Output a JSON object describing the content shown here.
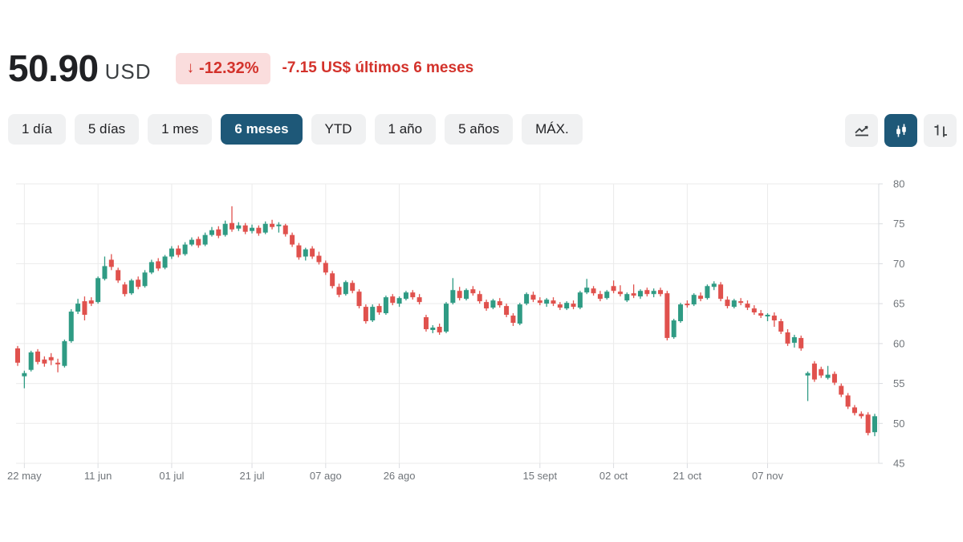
{
  "header": {
    "price": "50.90",
    "currency": "USD",
    "change_arrow": "↓",
    "change_percent": "-12.32%",
    "change_detail": "-7.15 US$ últimos 6 meses"
  },
  "range_tabs": [
    {
      "label": "1 día",
      "selected": false
    },
    {
      "label": "5 días",
      "selected": false
    },
    {
      "label": "1 mes",
      "selected": false
    },
    {
      "label": "6 meses",
      "selected": true
    },
    {
      "label": "YTD",
      "selected": false
    },
    {
      "label": "1 año",
      "selected": false
    },
    {
      "label": "5 años",
      "selected": false
    },
    {
      "label": "MÁX.",
      "selected": false
    }
  ],
  "chart_type_buttons": [
    {
      "icon": "line-chart-icon",
      "selected": false
    },
    {
      "icon": "candlestick-chart-icon",
      "selected": true
    },
    {
      "icon": "ohlc-chart-icon",
      "selected": false
    }
  ],
  "colors": {
    "accent": "#1e5878",
    "up": "#2f9b84",
    "down": "#e0514d",
    "badge_bg": "#fadddd",
    "negative_text": "#d3322b",
    "tab_bg": "#f0f1f2",
    "text_primary": "#202124",
    "axis_label": "#70757a",
    "gridline": "#ebebeb",
    "axis_line": "#dadce0"
  },
  "chart_data": {
    "type": "candlestick",
    "currency": "USD",
    "y_range": [
      45,
      80
    ],
    "y_ticks": [
      45,
      50,
      55,
      60,
      65,
      70,
      75,
      80
    ],
    "grid": true,
    "x_ticks": [
      {
        "label": "22 may",
        "index": 1
      },
      {
        "label": "11 jun",
        "index": 12
      },
      {
        "label": "01 jul",
        "index": 23
      },
      {
        "label": "21 jul",
        "index": 35
      },
      {
        "label": "07 ago",
        "index": 46
      },
      {
        "label": "26 ago",
        "index": 57
      },
      {
        "label": "15 sept",
        "index": 78
      },
      {
        "label": "02 oct",
        "index": 89
      },
      {
        "label": "21 oct",
        "index": 100
      },
      {
        "label": "07 nov",
        "index": 112
      }
    ],
    "candles_format": [
      "open",
      "high",
      "low",
      "close"
    ],
    "candles": [
      [
        59.4,
        59.7,
        57.2,
        57.6
      ],
      [
        55.9,
        56.6,
        54.4,
        56.3
      ],
      [
        56.7,
        59.1,
        56.5,
        58.9
      ],
      [
        59.0,
        59.3,
        57.4,
        57.7
      ],
      [
        58.0,
        58.4,
        57.1,
        57.5
      ],
      [
        58.3,
        58.8,
        57.3,
        57.9
      ],
      [
        57.6,
        58.1,
        56.4,
        57.4
      ],
      [
        57.2,
        60.5,
        57.0,
        60.3
      ],
      [
        60.3,
        64.3,
        60.1,
        64.0
      ],
      [
        64.0,
        65.6,
        63.7,
        65.0
      ],
      [
        65.3,
        65.9,
        62.9,
        63.6
      ],
      [
        65.4,
        65.8,
        64.7,
        65.0
      ],
      [
        65.2,
        68.4,
        65.0,
        68.2
      ],
      [
        68.1,
        70.9,
        67.9,
        69.7
      ],
      [
        70.5,
        71.2,
        69.2,
        69.6
      ],
      [
        69.2,
        69.5,
        67.6,
        67.9
      ],
      [
        67.4,
        67.7,
        65.9,
        66.2
      ],
      [
        66.3,
        68.1,
        66.1,
        67.9
      ],
      [
        68.0,
        68.4,
        66.8,
        67.1
      ],
      [
        67.2,
        69.2,
        67.0,
        68.9
      ],
      [
        68.9,
        70.5,
        68.7,
        70.2
      ],
      [
        70.3,
        70.7,
        69.1,
        69.4
      ],
      [
        69.5,
        71.1,
        69.3,
        70.9
      ],
      [
        70.9,
        72.2,
        70.6,
        71.9
      ],
      [
        71.9,
        72.3,
        70.8,
        71.1
      ],
      [
        71.2,
        72.7,
        71.0,
        72.4
      ],
      [
        72.4,
        73.3,
        72.2,
        73.0
      ],
      [
        73.1,
        73.4,
        72.0,
        72.3
      ],
      [
        72.4,
        73.9,
        72.2,
        73.6
      ],
      [
        73.6,
        74.6,
        73.4,
        74.2
      ],
      [
        74.3,
        74.7,
        73.2,
        73.5
      ],
      [
        73.6,
        75.4,
        73.4,
        75.0
      ],
      [
        75.1,
        77.2,
        74.0,
        74.3
      ],
      [
        74.4,
        75.2,
        74.1,
        74.8
      ],
      [
        74.8,
        75.1,
        73.7,
        74.0
      ],
      [
        74.1,
        74.9,
        73.8,
        74.5
      ],
      [
        74.5,
        74.8,
        73.5,
        73.8
      ],
      [
        73.9,
        75.3,
        73.7,
        75.0
      ],
      [
        75.0,
        75.5,
        74.3,
        74.6
      ],
      [
        74.7,
        75.2,
        73.9,
        74.9
      ],
      [
        74.8,
        75.0,
        73.4,
        73.7
      ],
      [
        73.6,
        73.9,
        72.1,
        72.4
      ],
      [
        72.3,
        72.6,
        70.5,
        70.8
      ],
      [
        70.9,
        72.0,
        70.4,
        71.8
      ],
      [
        71.9,
        72.2,
        70.6,
        70.9
      ],
      [
        71.0,
        71.5,
        69.9,
        70.2
      ],
      [
        70.1,
        70.4,
        68.6,
        68.9
      ],
      [
        68.8,
        69.1,
        66.9,
        67.2
      ],
      [
        67.1,
        67.5,
        65.8,
        66.1
      ],
      [
        66.2,
        67.9,
        66.0,
        67.7
      ],
      [
        67.6,
        67.9,
        66.3,
        66.6
      ],
      [
        66.5,
        66.8,
        64.4,
        64.7
      ],
      [
        64.6,
        64.9,
        62.5,
        62.8
      ],
      [
        62.9,
        64.9,
        62.7,
        64.6
      ],
      [
        64.7,
        65.0,
        63.6,
        63.9
      ],
      [
        63.8,
        66.0,
        63.6,
        65.8
      ],
      [
        65.9,
        66.2,
        64.8,
        65.1
      ],
      [
        65.0,
        65.9,
        64.6,
        65.7
      ],
      [
        65.6,
        66.6,
        65.4,
        66.4
      ],
      [
        66.4,
        66.7,
        65.5,
        65.8
      ],
      [
        65.8,
        66.2,
        64.9,
        65.2
      ],
      [
        63.3,
        63.6,
        61.5,
        61.8
      ],
      [
        61.7,
        62.3,
        61.3,
        62.0
      ],
      [
        62.1,
        62.5,
        61.1,
        61.4
      ],
      [
        61.5,
        65.2,
        61.3,
        65.0
      ],
      [
        65.1,
        68.2,
        64.9,
        66.7
      ],
      [
        66.6,
        67.1,
        65.4,
        65.7
      ],
      [
        65.6,
        66.9,
        65.4,
        66.7
      ],
      [
        66.8,
        67.2,
        66.0,
        66.3
      ],
      [
        66.2,
        66.6,
        65.0,
        65.3
      ],
      [
        65.2,
        65.5,
        64.1,
        64.4
      ],
      [
        64.5,
        65.6,
        64.3,
        65.4
      ],
      [
        65.3,
        65.7,
        64.5,
        64.8
      ],
      [
        64.7,
        65.0,
        63.3,
        63.6
      ],
      [
        63.5,
        63.8,
        62.2,
        62.6
      ],
      [
        62.5,
        65.1,
        62.3,
        64.9
      ],
      [
        65.0,
        66.4,
        64.8,
        66.2
      ],
      [
        66.1,
        66.5,
        65.2,
        65.5
      ],
      [
        65.4,
        65.8,
        64.8,
        65.1
      ],
      [
        65.0,
        65.7,
        64.6,
        65.5
      ],
      [
        65.4,
        65.8,
        64.7,
        65.0
      ],
      [
        64.9,
        65.2,
        64.2,
        64.5
      ],
      [
        64.4,
        65.3,
        64.2,
        65.1
      ],
      [
        65.0,
        65.4,
        64.3,
        64.6
      ],
      [
        64.5,
        66.6,
        64.3,
        66.4
      ],
      [
        66.4,
        68.1,
        66.2,
        67.0
      ],
      [
        66.9,
        67.2,
        66.0,
        66.3
      ],
      [
        66.2,
        66.6,
        65.3,
        65.6
      ],
      [
        65.7,
        66.7,
        65.5,
        66.5
      ],
      [
        67.2,
        67.9,
        66.3,
        66.6
      ],
      [
        66.5,
        67.3,
        65.9,
        66.2
      ],
      [
        65.4,
        66.4,
        65.2,
        66.2
      ],
      [
        66.3,
        67.4,
        65.7,
        66.0
      ],
      [
        65.9,
        66.8,
        65.6,
        66.6
      ],
      [
        66.7,
        67.0,
        65.9,
        66.2
      ],
      [
        66.2,
        66.9,
        65.8,
        66.6
      ],
      [
        66.7,
        67.0,
        65.9,
        66.2
      ],
      [
        66.3,
        66.6,
        60.4,
        60.7
      ],
      [
        60.8,
        63.1,
        60.6,
        62.9
      ],
      [
        62.8,
        65.1,
        62.6,
        64.9
      ],
      [
        65.0,
        65.4,
        64.5,
        64.8
      ],
      [
        64.9,
        66.3,
        64.7,
        66.1
      ],
      [
        66.0,
        66.4,
        65.3,
        65.6
      ],
      [
        65.7,
        67.4,
        65.5,
        67.2
      ],
      [
        67.1,
        67.8,
        66.7,
        67.5
      ],
      [
        67.4,
        67.7,
        65.3,
        65.6
      ],
      [
        65.5,
        65.9,
        64.4,
        64.7
      ],
      [
        64.6,
        65.6,
        64.4,
        65.4
      ],
      [
        65.3,
        65.7,
        64.8,
        65.1
      ],
      [
        65.0,
        65.4,
        64.2,
        64.5
      ],
      [
        64.4,
        64.8,
        63.6,
        63.9
      ],
      [
        63.8,
        64.2,
        63.2,
        63.5
      ],
      [
        63.4,
        63.8,
        62.8,
        63.6
      ],
      [
        63.5,
        63.9,
        62.1,
        62.9
      ],
      [
        62.8,
        63.1,
        61.2,
        61.5
      ],
      [
        61.4,
        61.8,
        59.7,
        60.0
      ],
      [
        60.1,
        61.1,
        59.5,
        60.8
      ],
      [
        60.7,
        61.0,
        59.1,
        59.4
      ],
      [
        56.0,
        56.5,
        52.8,
        56.3
      ],
      [
        57.5,
        57.8,
        55.2,
        55.5
      ],
      [
        56.8,
        57.1,
        55.7,
        56.0
      ],
      [
        55.7,
        57.2,
        55.5,
        56.1
      ],
      [
        56.2,
        56.5,
        54.8,
        55.1
      ],
      [
        54.7,
        55.0,
        53.3,
        53.6
      ],
      [
        53.5,
        53.8,
        51.8,
        52.1
      ],
      [
        52.0,
        52.3,
        51.0,
        51.3
      ],
      [
        51.2,
        51.5,
        50.6,
        50.9
      ],
      [
        51.1,
        51.4,
        48.5,
        48.8
      ],
      [
        48.9,
        51.2,
        48.4,
        50.9
      ]
    ]
  }
}
